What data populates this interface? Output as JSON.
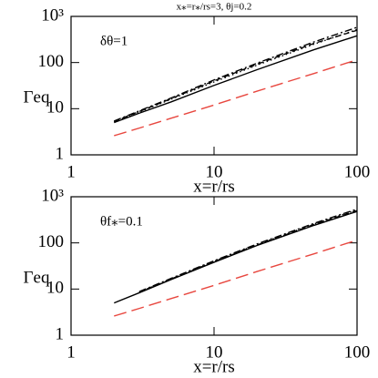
{
  "chart_data": [
    {
      "type": "line",
      "title": "x⁎=r⁎/rs=3,  θj=0.2",
      "annotation": "δθ=1",
      "x_label": "x=r/rs",
      "y_label": "Γeq",
      "log_x": true,
      "log_y": true,
      "xlim": [
        1,
        100
      ],
      "ylim": [
        1,
        1000
      ],
      "xticks": [
        1,
        10,
        100
      ],
      "yticks": [
        1,
        10,
        100,
        {
          "value": 1000,
          "label": "10³"
        }
      ],
      "x": [
        2,
        3,
        5,
        10,
        20,
        50,
        100
      ],
      "series": [
        {
          "color": "#000000",
          "dash": "solid",
          "values": [
            5,
            8,
            14,
            32,
            70,
            190,
            380
          ]
        },
        {
          "color": "#000000",
          "dash": "dotted",
          "values": [
            5.2,
            8.5,
            16,
            38,
            88,
            250,
            520
          ]
        },
        {
          "color": "#000000",
          "dash": "dashed",
          "values": [
            5.3,
            8.7,
            16.5,
            40,
            92,
            260,
            500
          ]
        },
        {
          "color": "#000000",
          "dash": "dashdot",
          "values": [
            5.4,
            9,
            17,
            42,
            97,
            280,
            580
          ]
        },
        {
          "color": "#e8473f",
          "dash": "longdash",
          "values": [
            2.6,
            3.8,
            6.2,
            12,
            24,
            58,
            115
          ]
        }
      ]
    },
    {
      "type": "line",
      "annotation": "θf⁎=0.1",
      "x_label": "x=r/rs",
      "y_label": "Γeq",
      "log_x": true,
      "log_y": true,
      "xlim": [
        1,
        100
      ],
      "ylim": [
        1,
        1000
      ],
      "xticks": [
        1,
        10,
        100
      ],
      "yticks": [
        1,
        10,
        100,
        {
          "value": 1000,
          "label": "10³"
        }
      ],
      "x": [
        2,
        3,
        5,
        10,
        20,
        50,
        100
      ],
      "series": [
        {
          "color": "#000000",
          "dash": "solid",
          "values": [
            5,
            8.3,
            16,
            38,
            88,
            240,
            480
          ]
        },
        {
          "color": "#000000",
          "dash": "dotted",
          "values": [
            null,
            8.6,
            16.5,
            40,
            92,
            255,
            520
          ]
        },
        {
          "color": "#000000",
          "dash": "dashed",
          "values": [
            null,
            8.5,
            16.3,
            39,
            90,
            250,
            500
          ]
        },
        {
          "color": "#000000",
          "dash": "dashdot",
          "values": [
            null,
            8.8,
            17,
            41,
            95,
            265,
            540
          ]
        },
        {
          "color": "#e8473f",
          "dash": "longdash",
          "values": [
            2.6,
            3.8,
            6.2,
            12,
            24,
            58,
            115
          ]
        }
      ]
    }
  ]
}
